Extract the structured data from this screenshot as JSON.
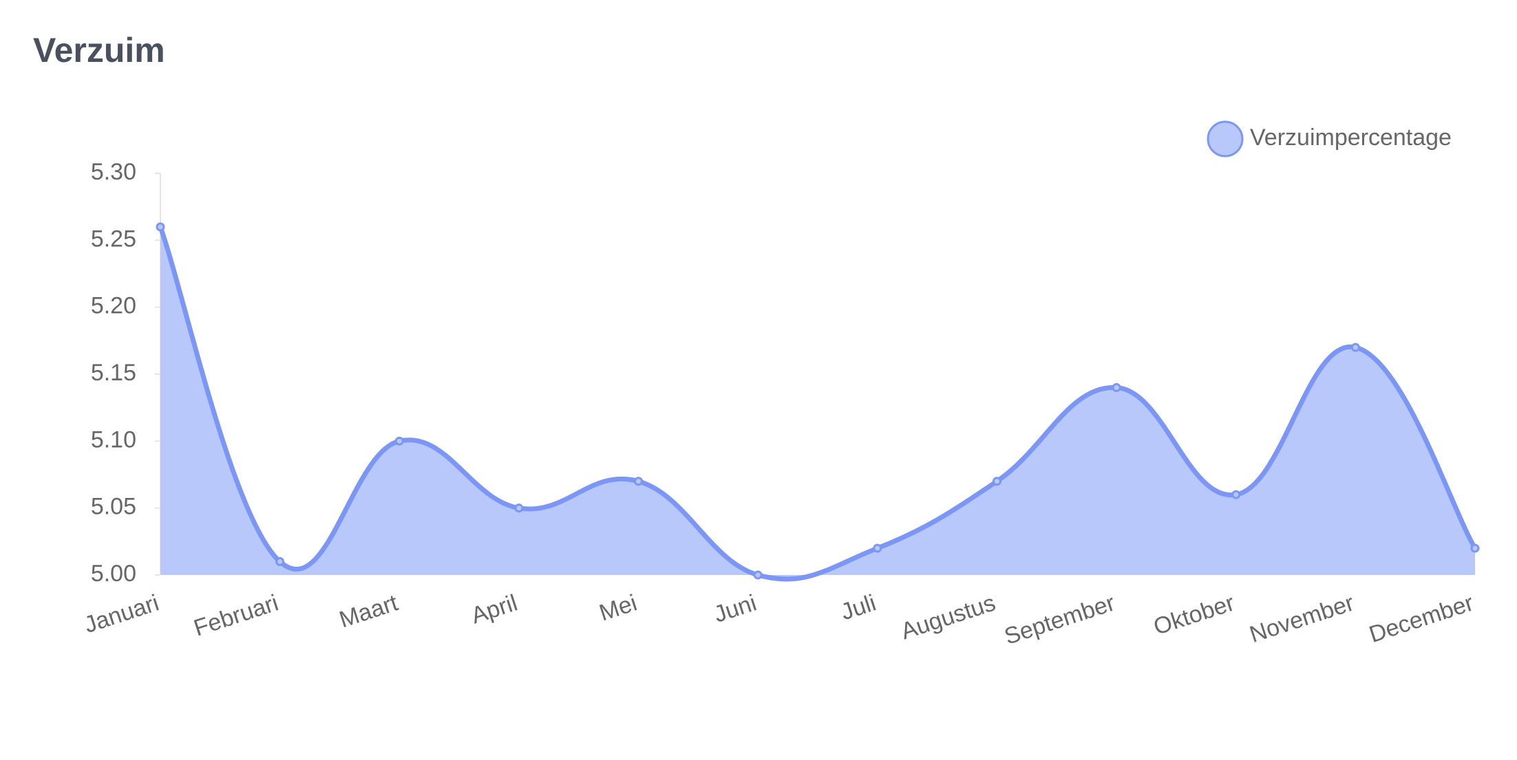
{
  "chart_data": {
    "type": "line",
    "title": "Verzuim",
    "categories": [
      "Januari",
      "Februari",
      "Maart",
      "April",
      "Mei",
      "Juni",
      "Juli",
      "Augustus",
      "September",
      "Oktober",
      "November",
      "December"
    ],
    "series": [
      {
        "name": "Verzuimpercentage",
        "color": "#7b96f5",
        "fill_color": "#b8c8fb",
        "values": [
          5.26,
          5.01,
          5.1,
          5.05,
          5.07,
          5.0,
          5.02,
          5.07,
          5.14,
          5.06,
          5.17,
          5.02
        ]
      }
    ],
    "ylim": [
      5.0,
      5.3
    ],
    "yticks": [
      {
        "value": 5.0,
        "label": "5.00"
      },
      {
        "value": 5.05,
        "label": "5.05"
      },
      {
        "value": 5.1,
        "label": "5.10"
      },
      {
        "value": 5.15,
        "label": "5.15"
      },
      {
        "value": 5.2,
        "label": "5.20"
      },
      {
        "value": 5.25,
        "label": "5.25"
      },
      {
        "value": 5.3,
        "label": "5.30"
      }
    ],
    "fill": true,
    "grid": false,
    "legend": "top-right"
  }
}
